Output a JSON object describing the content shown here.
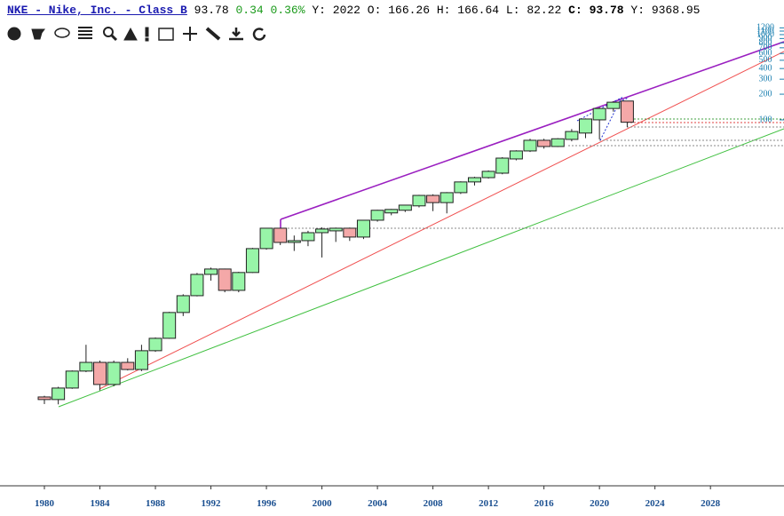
{
  "header": {
    "symbol": "NKE - Nike, Inc. - Class B",
    "last": 93.78,
    "change": 0.34,
    "change_pct": "0.36%",
    "fields": [
      {
        "label": "Y:",
        "value": 2022
      },
      {
        "label": "O:",
        "value": 166.26
      },
      {
        "label": "H:",
        "value": 166.64
      },
      {
        "label": "L:",
        "value": 82.22
      },
      {
        "label": "C:",
        "value": 93.78
      },
      {
        "label": "Y:",
        "value": 9368.95
      }
    ]
  },
  "chart_data": {
    "type": "candlestick",
    "log_scale": true,
    "x": [
      1980,
      1981,
      1982,
      1983,
      1984,
      1985,
      1986,
      1987,
      1988,
      1989,
      1990,
      1991,
      1992,
      1993,
      1994,
      1995,
      1996,
      1997,
      1998,
      1999,
      2000,
      2001,
      2002,
      2003,
      2004,
      2005,
      2006,
      2007,
      2008,
      2009,
      2010,
      2011,
      2012,
      2013,
      2014,
      2015,
      2016,
      2017,
      2018,
      2019,
      2020,
      2021,
      2022
    ],
    "open": [
      0.0562,
      0.0524,
      0.0715,
      0.113,
      0.143,
      0.0787,
      0.143,
      0.118,
      0.196,
      0.274,
      0.55,
      0.866,
      1.54,
      1.78,
      1.0,
      1.62,
      3.09,
      5.36,
      3.65,
      3.83,
      4.75,
      4.99,
      5.36,
      4.22,
      6.65,
      8.1,
      8.7,
      9.8,
      13.0,
      10.7,
      14.0,
      18.7,
      21.0,
      23.7,
      34.8,
      43.2,
      57.6,
      48.7,
      59,
      70,
      100,
      136,
      166.26
    ],
    "high": [
      0.058,
      0.074,
      0.115,
      0.23,
      0.15,
      0.15,
      0.16,
      0.23,
      0.28,
      0.56,
      0.9,
      1.6,
      1.85,
      1.8,
      1.65,
      3.15,
      5.4,
      5.4,
      4.4,
      5.0,
      5.5,
      5.45,
      5.45,
      6.7,
      8.8,
      9.0,
      10.1,
      13.2,
      13.4,
      14.2,
      19.0,
      21.5,
      25.5,
      36.5,
      44.0,
      60,
      60,
      61,
      78,
      104,
      140,
      165,
      166.64
    ],
    "low": [
      0.0464,
      0.046,
      0.07,
      0.11,
      0.067,
      0.075,
      0.115,
      0.113,
      0.19,
      0.27,
      0.5,
      0.85,
      1.3,
      0.95,
      0.95,
      1.6,
      3.0,
      3.4,
      2.9,
      3.3,
      2.43,
      3.7,
      3.8,
      4.0,
      6.4,
      7.6,
      8.3,
      9.4,
      8.5,
      8.0,
      13.5,
      17.0,
      20.5,
      23.0,
      33.5,
      42,
      46,
      48,
      56,
      61,
      59,
      125,
      82.22
    ],
    "close": [
      0.0524,
      0.0715,
      0.113,
      0.143,
      0.0787,
      0.143,
      0.118,
      0.196,
      0.274,
      0.55,
      0.866,
      1.54,
      1.78,
      1.0,
      1.62,
      3.09,
      5.36,
      3.65,
      3.83,
      4.75,
      5.24,
      5.36,
      4.22,
      6.65,
      8.7,
      8.9,
      10.0,
      13.0,
      10.7,
      14.0,
      18.7,
      21.0,
      24.9,
      35.6,
      43.2,
      57.6,
      48.7,
      60,
      73,
      102.4,
      136,
      161,
      93.78
    ],
    "up_color": "#98f5a8",
    "down_color": "#f4a8a8",
    "xlim": [
      1976.8,
      2033.3
    ],
    "xticks": [
      1980,
      1984,
      1988,
      1992,
      1996,
      2000,
      2004,
      2008,
      2012,
      2016,
      2020,
      2024,
      2028
    ],
    "ylim": [
      0.0051,
      1240
    ],
    "yticks": [
      100,
      200,
      300,
      400,
      500,
      600,
      700,
      800,
      900,
      1000,
      1100,
      1200
    ]
  }
}
